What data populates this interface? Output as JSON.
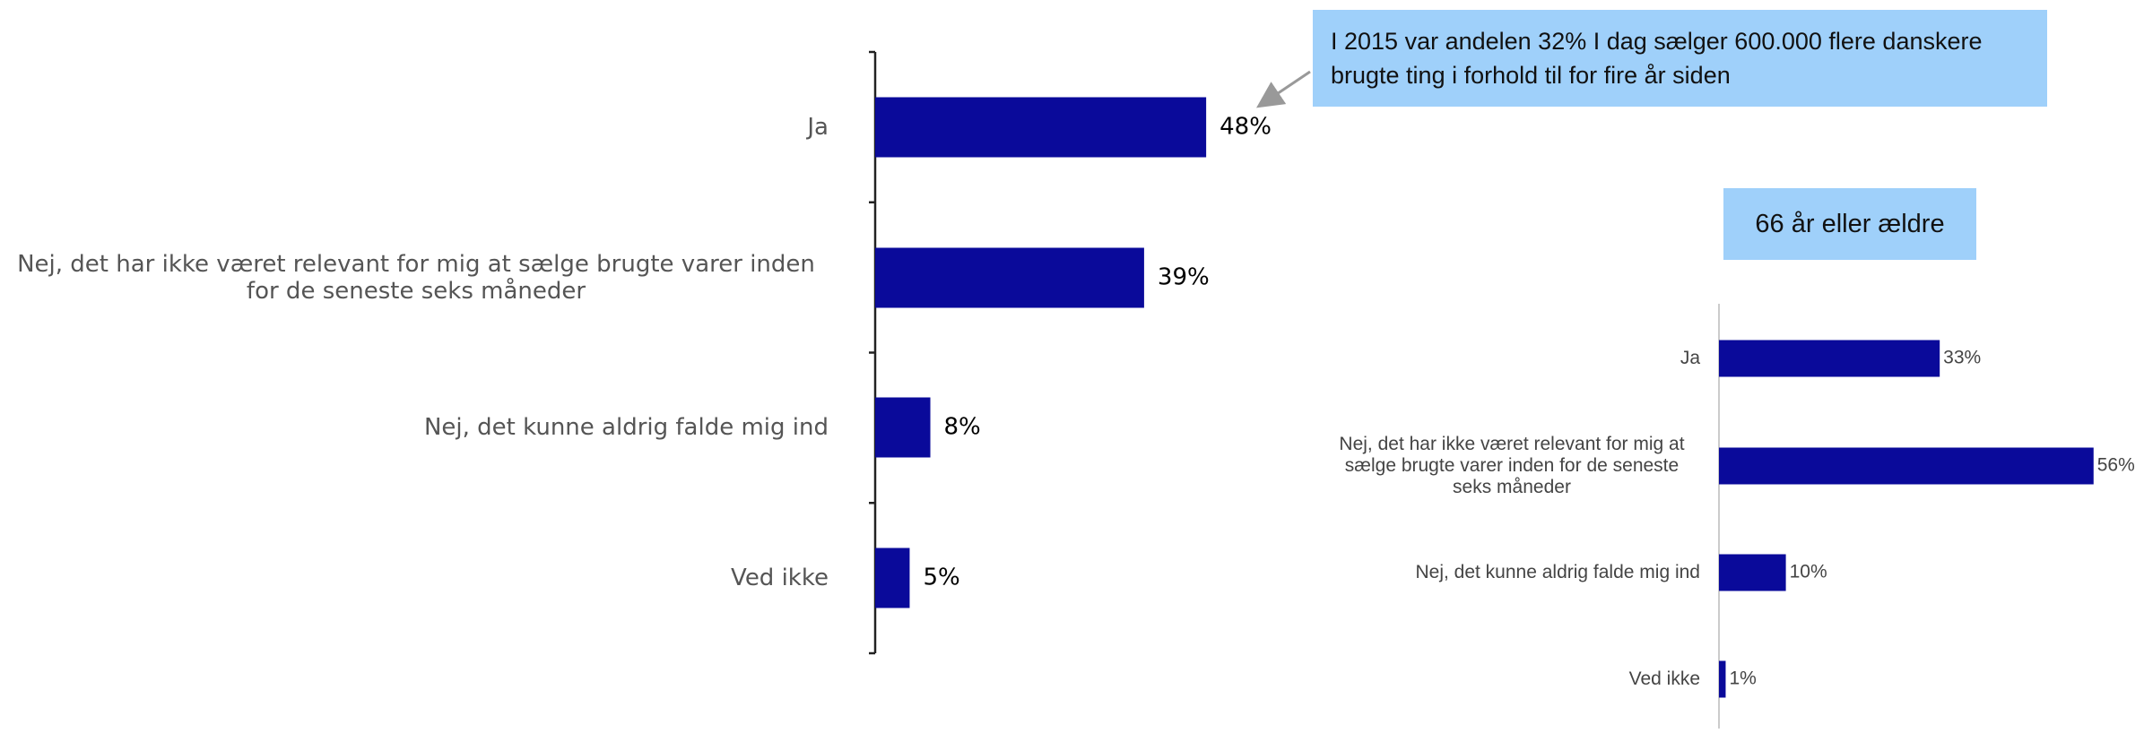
{
  "chart_data": [
    {
      "type": "bar",
      "orientation": "horizontal",
      "categories": [
        "Ja",
        "Nej, det har ikke været relevant for mig at sælge brugte varer inden for de seneste seks måneder",
        "Nej, det kunne aldrig falde mig ind",
        "Ved ikke"
      ],
      "values": [
        48,
        39,
        8,
        5
      ],
      "value_labels": [
        "48%",
        "39%",
        "8%",
        "5%"
      ],
      "color": "#0a0a9a",
      "xlim": [
        0,
        100
      ],
      "annotation": "I 2015 var andelen 32% I dag sælger 600.000 flere danskere brugte ting i forhold til for fire år siden"
    },
    {
      "type": "bar",
      "orientation": "horizontal",
      "title": "66 år eller ældre",
      "categories": [
        "Ja",
        "Nej, det har ikke været relevant for mig at sælge brugte varer inden for de seneste seks måneder",
        "Nej, det kunne aldrig falde mig ind",
        "Ved ikke"
      ],
      "values": [
        33,
        56,
        10,
        1
      ],
      "value_labels": [
        "33%",
        "56%",
        "10%",
        "1%"
      ],
      "color": "#0a0a9a",
      "xlim": [
        0,
        100
      ]
    }
  ]
}
